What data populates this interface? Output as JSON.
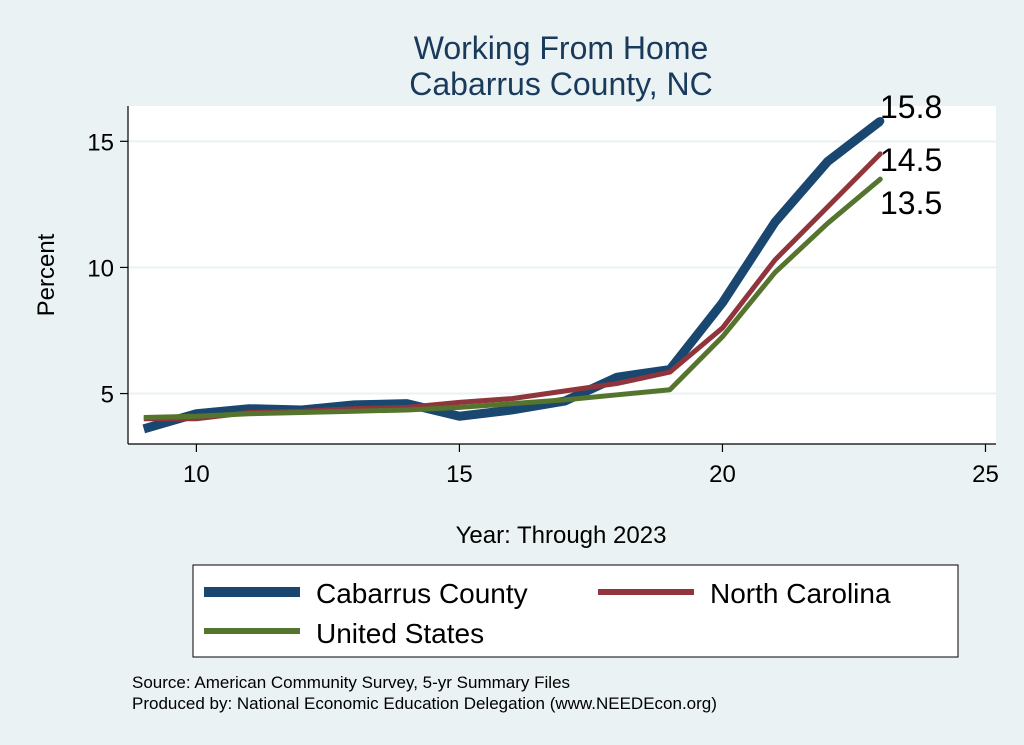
{
  "chart_data": {
    "type": "line",
    "title": [
      "Working From Home",
      "Cabarrus County, NC"
    ],
    "xlabel": "Year: Through 2023",
    "ylabel": "Percent",
    "xlim": [
      8.7,
      25.2
    ],
    "ylim": [
      3.0,
      16.4
    ],
    "xticks": [
      10,
      15,
      20,
      25
    ],
    "yticks": [
      5,
      10,
      15
    ],
    "grid": "horizontal",
    "x": [
      9,
      10,
      11,
      12,
      13,
      14,
      15,
      16,
      17,
      18,
      19,
      20,
      21,
      22,
      23
    ],
    "series": [
      {
        "name": "Cabarrus County",
        "color": "#1a476f",
        "width": 9,
        "values": [
          3.6,
          4.2,
          4.4,
          4.35,
          4.55,
          4.6,
          4.1,
          4.35,
          4.7,
          5.65,
          5.95,
          8.6,
          11.8,
          14.2,
          15.8
        ]
      },
      {
        "name": "North Carolina",
        "color": "#90353b",
        "width": 5,
        "values": [
          4.0,
          4.0,
          4.25,
          4.3,
          4.4,
          4.45,
          4.65,
          4.8,
          5.1,
          5.4,
          5.85,
          7.6,
          10.3,
          12.4,
          14.5
        ]
      },
      {
        "name": "United States",
        "color": "#55752f",
        "width": 5,
        "values": [
          4.05,
          4.1,
          4.2,
          4.25,
          4.3,
          4.35,
          4.45,
          4.6,
          4.75,
          4.95,
          5.15,
          7.25,
          9.8,
          11.75,
          13.5
        ]
      }
    ],
    "end_labels": [
      "15.8",
      "14.5",
      "13.5"
    ],
    "legend": {
      "placement": "bottom",
      "entries": [
        "Cabarrus County",
        "North Carolina",
        "United States"
      ]
    }
  },
  "source": {
    "line1": "Source: American Community Survey, 5-yr Summary Files",
    "line2": "Produced by: National Economic Education Delegation (www.NEEDEcon.org)"
  }
}
